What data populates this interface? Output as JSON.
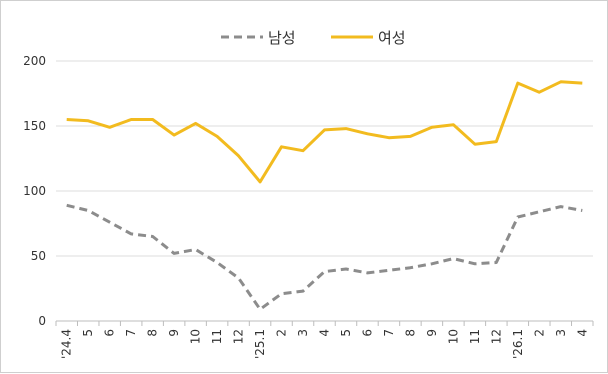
{
  "chart_data": {
    "type": "line",
    "title": "",
    "xlabel": "",
    "ylabel": "",
    "ylim": [
      0,
      200
    ],
    "yticks": [
      0,
      50,
      100,
      150,
      200
    ],
    "grid": true,
    "legend_position": "top",
    "categories": [
      "'24.4",
      "5",
      "6",
      "7",
      "8",
      "9",
      "10",
      "11",
      "12",
      "'25.1",
      "2",
      "3",
      "4",
      "5",
      "6",
      "7",
      "8",
      "9",
      "10",
      "11",
      "12",
      "'26.1",
      "2",
      "3",
      "4"
    ],
    "series": [
      {
        "name": "남성",
        "color": "#8c8c8c",
        "style": "dashed",
        "values": [
          89,
          85,
          76,
          67,
          65,
          52,
          55,
          45,
          33,
          9,
          21,
          23,
          38,
          40,
          37,
          39,
          41,
          44,
          48,
          44,
          45,
          80,
          84,
          88,
          85
        ]
      },
      {
        "name": "여성",
        "color": "#f2bb1f",
        "style": "solid",
        "values": [
          155,
          154,
          149,
          155,
          155,
          143,
          152,
          142,
          127,
          107,
          134,
          131,
          147,
          148,
          144,
          141,
          142,
          149,
          151,
          136,
          138,
          183,
          176,
          184,
          183
        ]
      }
    ]
  }
}
